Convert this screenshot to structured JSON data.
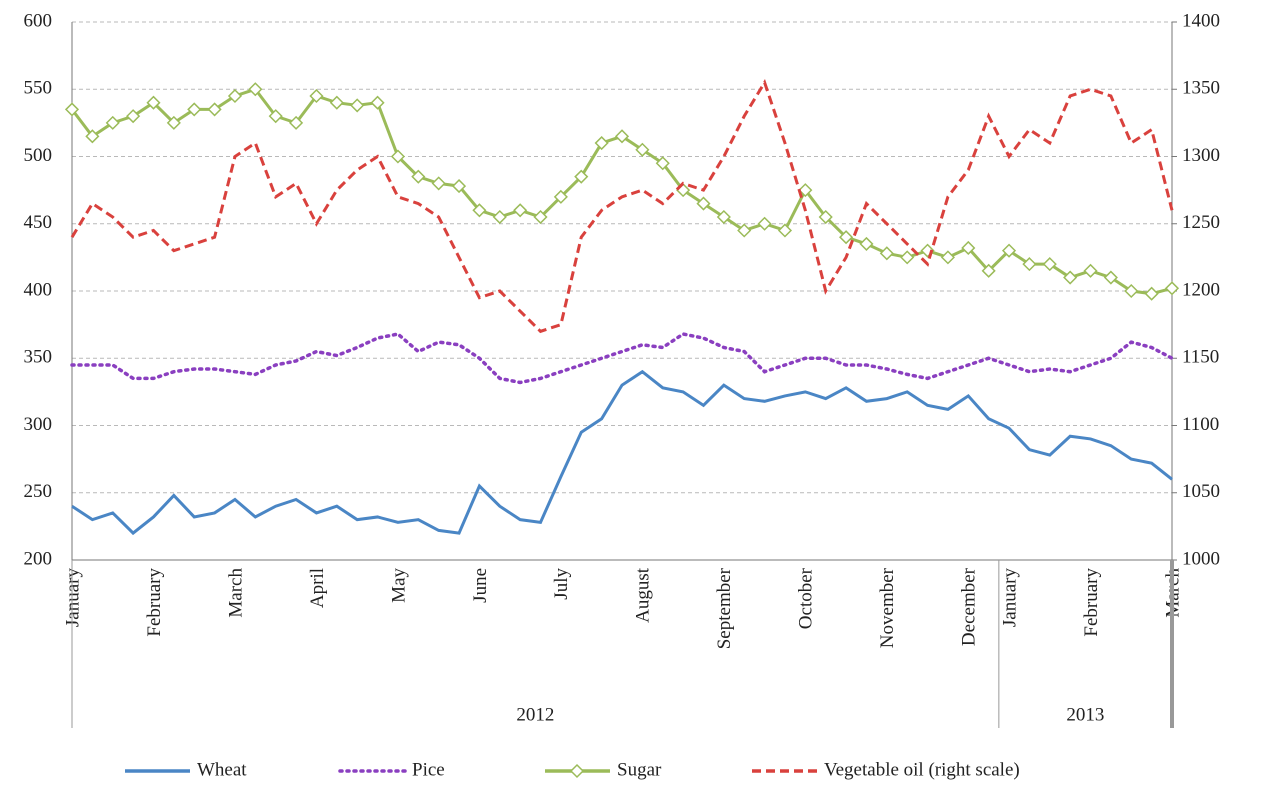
{
  "chart_data": {
    "type": "line",
    "categories": [
      "January",
      null,
      null,
      null,
      "February",
      null,
      null,
      null,
      "March",
      null,
      null,
      null,
      "April",
      null,
      null,
      null,
      "May",
      null,
      null,
      null,
      "June",
      null,
      null,
      null,
      "July",
      null,
      null,
      null,
      "August",
      null,
      null,
      null,
      "September",
      null,
      null,
      null,
      "October",
      null,
      null,
      null,
      "November",
      null,
      null,
      null,
      "December",
      null,
      "January",
      null,
      null,
      null,
      "February",
      null,
      null,
      null,
      "March"
    ],
    "groups": [
      {
        "label": "2012",
        "span": 46
      },
      {
        "label": "2013",
        "span": 9
      }
    ],
    "ylim": [
      200,
      600
    ],
    "yticks": [
      200,
      250,
      300,
      350,
      400,
      450,
      500,
      550,
      600
    ],
    "y2lim": [
      1000,
      1400
    ],
    "y2ticks": [
      1000,
      1050,
      1100,
      1150,
      1200,
      1250,
      1300,
      1350,
      1400
    ],
    "grid": true,
    "legend": "bottom",
    "series": [
      {
        "name": "Wheat",
        "color": "#4a86c5",
        "dash": "solid",
        "values": [
          240,
          230,
          235,
          220,
          232,
          248,
          232,
          235,
          245,
          232,
          240,
          245,
          235,
          240,
          230,
          232,
          228,
          230,
          222,
          220,
          255,
          240,
          230,
          228,
          262,
          295,
          305,
          330,
          340,
          328,
          325,
          315,
          330,
          320,
          318,
          322,
          325,
          320,
          328,
          318,
          320,
          325,
          315,
          312,
          322,
          305,
          298,
          282,
          278,
          292,
          290,
          285,
          275,
          272,
          260
        ]
      },
      {
        "name": "Pice",
        "color": "#8a3fc0",
        "dash": "dotted",
        "values": [
          345,
          345,
          345,
          335,
          335,
          340,
          342,
          342,
          340,
          338,
          345,
          348,
          355,
          352,
          358,
          365,
          368,
          355,
          362,
          360,
          350,
          335,
          332,
          335,
          340,
          345,
          350,
          355,
          360,
          358,
          368,
          365,
          358,
          355,
          340,
          345,
          350,
          350,
          345,
          345,
          342,
          338,
          335,
          340,
          345,
          350,
          345,
          340,
          342,
          340,
          345,
          350,
          362,
          358,
          350
        ]
      },
      {
        "name": "Sugar",
        "color": "#9bbb59",
        "dash": "solid",
        "marker": "diamond",
        "values": [
          535,
          515,
          525,
          530,
          540,
          525,
          535,
          535,
          545,
          550,
          530,
          525,
          545,
          540,
          538,
          540,
          500,
          485,
          480,
          478,
          460,
          455,
          460,
          455,
          470,
          485,
          510,
          515,
          505,
          495,
          475,
          465,
          455,
          445,
          450,
          445,
          475,
          455,
          440,
          435,
          428,
          425,
          430,
          425,
          432,
          415,
          430,
          420,
          420,
          410,
          415,
          410,
          400,
          398,
          402
        ]
      },
      {
        "name": "Vegetable oil (right scale)",
        "color": "#d9413d",
        "dash": "dashed",
        "axis": "y2",
        "values": [
          1240,
          1265,
          1255,
          1240,
          1245,
          1230,
          1235,
          1240,
          1300,
          1310,
          1270,
          1280,
          1250,
          1275,
          1290,
          1300,
          1270,
          1265,
          1255,
          1225,
          1195,
          1200,
          1185,
          1170,
          1175,
          1240,
          1260,
          1270,
          1275,
          1265,
          1280,
          1275,
          1300,
          1330,
          1355,
          1310,
          1260,
          1200,
          1225,
          1265,
          1250,
          1235,
          1220,
          1270,
          1290,
          1330,
          1300,
          1320,
          1310,
          1345,
          1350,
          1345,
          1310,
          1320,
          1260
        ]
      }
    ]
  }
}
